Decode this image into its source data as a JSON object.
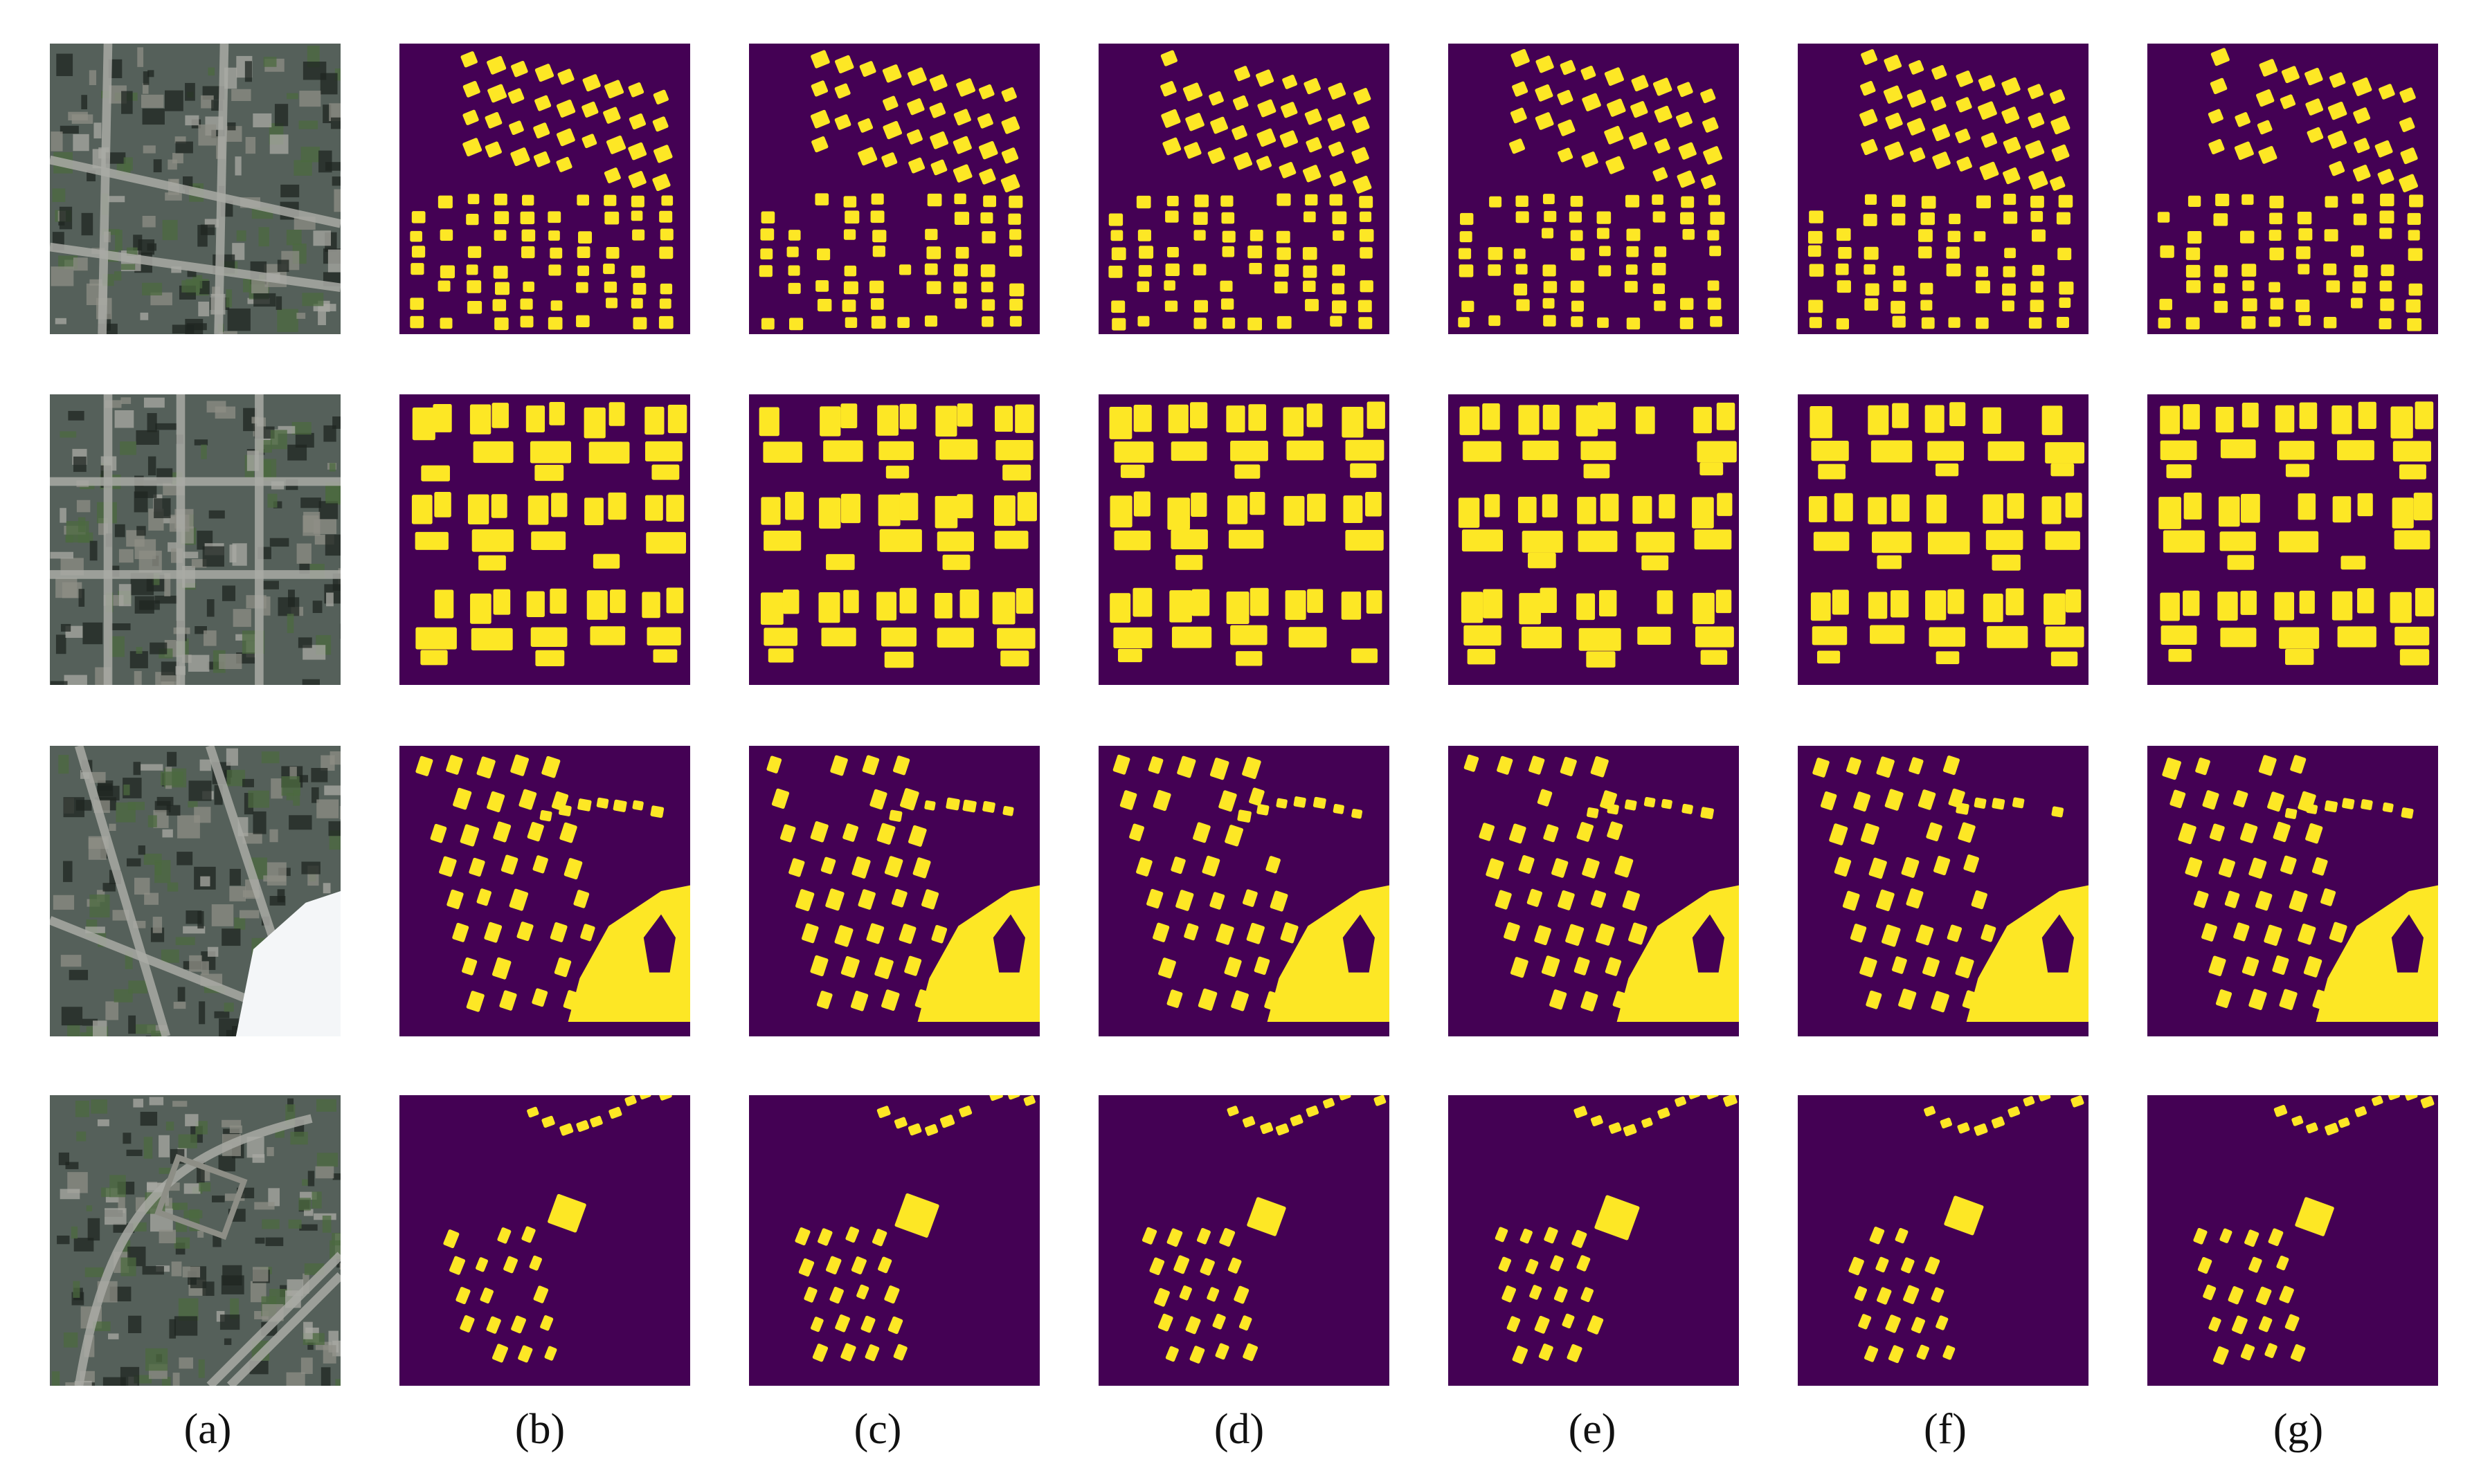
{
  "figure": {
    "column_labels": [
      "(a)",
      "(b)",
      "(c)",
      "(d)",
      "(e)",
      "(f)",
      "(g)"
    ],
    "rows": [
      {
        "scene": "dense-residential-grid"
      },
      {
        "scene": "dense-urban-blocks"
      },
      {
        "scene": "residential-with-large-building"
      },
      {
        "scene": "curved-road-sparse-buildings"
      }
    ],
    "colors": {
      "mask_background": "#440154",
      "mask_building": "#fde725",
      "aerial_base": "#55605a",
      "aerial_roof": "#8d8e86",
      "aerial_road": "#a9aaa4",
      "aerial_shadow": "#1f2622",
      "aerial_vegetation": "#4c6a40",
      "aerial_white_roof": "#f4f6f8"
    }
  }
}
